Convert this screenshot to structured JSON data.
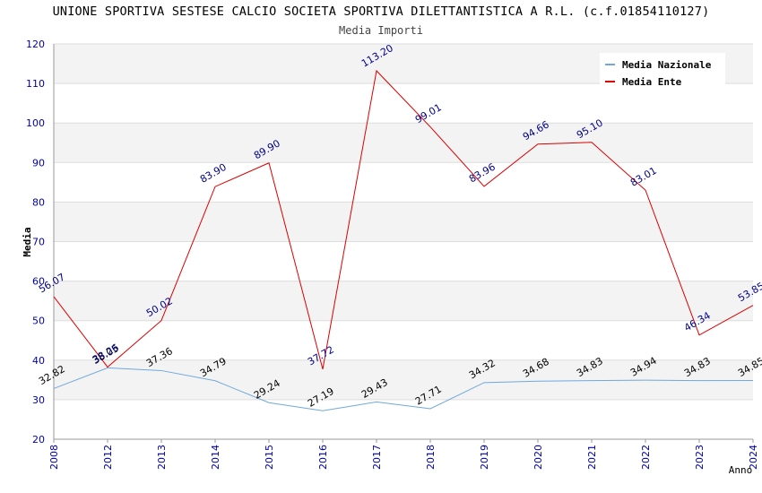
{
  "chart_data": {
    "type": "line",
    "title": "UNIONE SPORTIVA SESTESE CALCIO SOCIETA SPORTIVA DILETTANTISTICA A R.L. (c.f.01854110127)",
    "subtitle": "Media Importi",
    "xlabel": "Anno",
    "ylabel": "Media",
    "ylim": [
      20,
      120
    ],
    "yticks": [
      20,
      30,
      40,
      50,
      60,
      70,
      80,
      90,
      100,
      110,
      120
    ],
    "categories": [
      "2008",
      "2012",
      "2013",
      "2014",
      "2015",
      "2016",
      "2017",
      "2018",
      "2019",
      "2020",
      "2021",
      "2022",
      "2023",
      "2024"
    ],
    "legend_position": "top-right",
    "grid": true,
    "series": [
      {
        "name": "Media Nazionale",
        "color": "#6fa8dc",
        "label_color": "#000000",
        "values": [
          32.82,
          38.05,
          37.36,
          34.79,
          29.24,
          27.19,
          29.43,
          27.71,
          34.32,
          34.68,
          34.83,
          34.94,
          34.83,
          34.85
        ],
        "labels": [
          "32.82",
          "38.05",
          "37.36",
          "34.79",
          "29.24",
          "27.19",
          "29.43",
          "27.71",
          "34.32",
          "34.68",
          "34.83",
          "34.94",
          "34.83",
          "34.85"
        ]
      },
      {
        "name": "Media Ente",
        "color": "#dd0000",
        "label_color": "#00008b",
        "values": [
          56.07,
          38.26,
          50.02,
          83.9,
          89.9,
          37.72,
          113.2,
          99.01,
          83.96,
          94.66,
          95.1,
          83.01,
          46.34,
          53.85
        ],
        "labels": [
          "56.07",
          "38.26",
          "50.02",
          "83.90",
          "89.90",
          "37.72",
          "113.20",
          "99.01",
          "83.96",
          "94.66",
          "95.10",
          "83.01",
          "46.34",
          "53.85"
        ]
      }
    ],
    "colors": {
      "axis_tick": "#0000aa",
      "band": "#f3f3f3",
      "grid": "#dddddd",
      "axis": "#999999"
    }
  }
}
